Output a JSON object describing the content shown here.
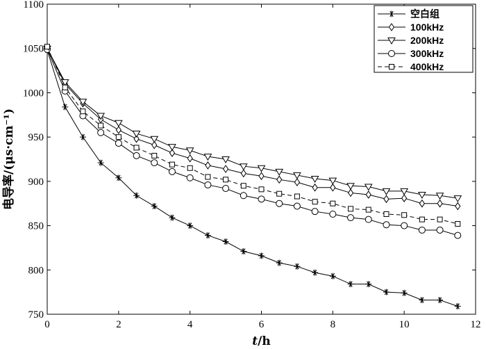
{
  "chart_data": {
    "type": "line",
    "xlabel_italic": "t",
    "xlabel_rest": "/h",
    "ylabel": "电导率/(μs·cm⁻¹)",
    "xlim": [
      0,
      12
    ],
    "ylim": [
      750,
      1100
    ],
    "xticks": [
      0,
      2,
      4,
      6,
      8,
      10,
      12
    ],
    "yticks": [
      750,
      800,
      850,
      900,
      950,
      1000,
      1050,
      1100
    ],
    "grid": false,
    "legend_position": "top-right",
    "x": [
      0,
      0.5,
      1,
      1.5,
      2,
      2.5,
      3,
      3.5,
      4,
      4.5,
      5,
      5.5,
      6,
      6.5,
      7,
      7.5,
      8,
      8.5,
      9,
      9.5,
      10,
      10.5,
      11,
      11.5
    ],
    "series": [
      {
        "name": "空白组",
        "marker": "star",
        "dash": "solid",
        "values": [
          1048,
          984,
          950,
          921,
          904,
          884,
          872,
          859,
          850,
          839,
          832,
          821,
          816,
          808,
          804,
          797,
          793,
          784,
          784,
          775,
          774,
          766,
          766,
          759
        ]
      },
      {
        "name": "100kHz",
        "marker": "diamond",
        "dash": "solid",
        "values": [
          1050,
          1010,
          988,
          970,
          958,
          948,
          941,
          932,
          926,
          918,
          914,
          909,
          906,
          902,
          899,
          893,
          893,
          887,
          885,
          880,
          881,
          875,
          875,
          872
        ]
      },
      {
        "name": "200kHz",
        "marker": "triangle-down",
        "dash": "solid",
        "values": [
          1050,
          1012,
          990,
          974,
          966,
          954,
          948,
          939,
          935,
          928,
          925,
          917,
          915,
          911,
          907,
          903,
          901,
          895,
          894,
          889,
          889,
          885,
          884,
          881
        ]
      },
      {
        "name": "300kHz",
        "marker": "circle",
        "dash": "solid",
        "values": [
          1049,
          1002,
          974,
          955,
          943,
          929,
          921,
          911,
          904,
          896,
          892,
          884,
          880,
          875,
          872,
          866,
          863,
          859,
          857,
          851,
          850,
          845,
          845,
          839
        ]
      },
      {
        "name": "400kHz",
        "marker": "square",
        "dash": "dashed",
        "values": [
          1052,
          1006,
          979,
          963,
          950,
          938,
          929,
          919,
          915,
          905,
          902,
          895,
          891,
          886,
          883,
          877,
          875,
          869,
          868,
          863,
          862,
          857,
          857,
          852
        ]
      }
    ]
  }
}
